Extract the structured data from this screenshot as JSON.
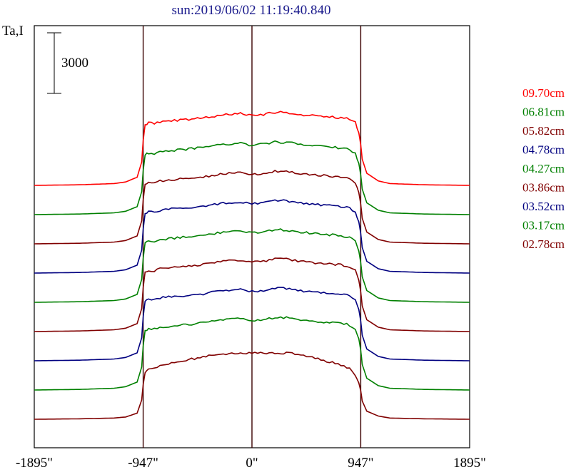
{
  "chart_data": {
    "type": "line",
    "title": "sun:2019/06/02 11:19:40.840",
    "ylabel": "Ta,I",
    "scale_bar_label": "3000",
    "x_ticks": [
      "-1895\"",
      "-947\"",
      "0\"",
      "947\"",
      "1895\""
    ],
    "x_tick_values": [
      -1895,
      -947,
      0,
      947,
      1895
    ],
    "vertical_lines_at": [
      -947,
      0,
      947
    ],
    "xlim": [
      -1895,
      1895
    ],
    "grid": false,
    "legend_position": "right",
    "series": [
      {
        "name": "09.70cm",
        "color": "#ff0000",
        "baseline_index": 0
      },
      {
        "name": "06.81cm",
        "color": "#008000",
        "baseline_index": 1
      },
      {
        "name": "05.82cm",
        "color": "#800000",
        "baseline_index": 2
      },
      {
        "name": "04.78cm",
        "color": "#000080",
        "baseline_index": 3
      },
      {
        "name": "04.27cm",
        "color": "#008000",
        "baseline_index": 4
      },
      {
        "name": "03.86cm",
        "color": "#800000",
        "baseline_index": 5
      },
      {
        "name": "03.52cm",
        "color": "#000080",
        "baseline_index": 6
      },
      {
        "name": "03.17cm",
        "color": "#008000",
        "baseline_index": 7
      },
      {
        "name": "02.78cm",
        "color": "#800000",
        "baseline_index": 8
      }
    ],
    "profile_x": [
      -1895,
      -1500,
      -1200,
      -1100,
      -1000,
      -960,
      -947,
      -930,
      -900,
      -850,
      -800,
      -700,
      -600,
      -500,
      -400,
      -300,
      -200,
      -100,
      0,
      100,
      200,
      300,
      400,
      500,
      600,
      700,
      800,
      850,
      900,
      930,
      947,
      960,
      1000,
      1100,
      1200,
      1500,
      1895
    ],
    "profile_limb_brightened": [
      0,
      30,
      90,
      170,
      400,
      1150,
      2200,
      3000,
      3100,
      3050,
      3150,
      3200,
      3250,
      3300,
      3350,
      3450,
      3520,
      3550,
      3450,
      3500,
      3620,
      3600,
      3520,
      3450,
      3420,
      3380,
      3330,
      3280,
      3100,
      2600,
      2000,
      1300,
      600,
      220,
      90,
      30,
      0
    ],
    "profile_flat": [
      0,
      20,
      60,
      110,
      300,
      950,
      1700,
      2300,
      2450,
      2500,
      2650,
      2800,
      2900,
      3000,
      3100,
      3200,
      3260,
      3300,
      3260,
      3280,
      3300,
      3280,
      3200,
      3100,
      2950,
      2800,
      2650,
      2500,
      2200,
      1800,
      1400,
      900,
      400,
      160,
      60,
      20,
      0
    ]
  }
}
